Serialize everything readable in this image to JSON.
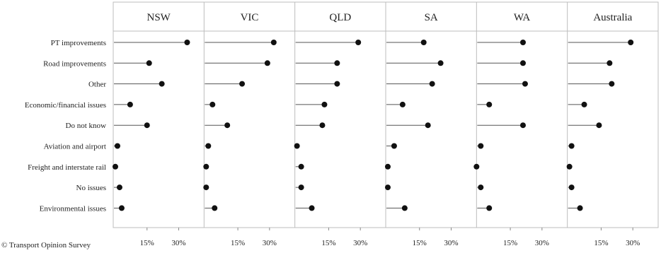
{
  "chart_data": {
    "type": "dot",
    "panels": [
      "NSW",
      "VIC",
      "QLD",
      "SA",
      "WA",
      "Australia"
    ],
    "categories": [
      "PT improvements",
      "Road improvements",
      "Other",
      "Economic/financial issues",
      "Do not know",
      "Aviation and airport",
      "Freight and interstate rail",
      "No issues",
      "Environmental issues"
    ],
    "x_ticks": [
      15,
      30
    ],
    "x_tick_labels": [
      "15%",
      "30%"
    ],
    "xlim": [
      -1,
      42
    ],
    "series": [
      {
        "values": [
          34,
          16,
          22,
          7,
          15,
          1,
          0,
          2,
          3
        ]
      },
      {
        "values": [
          32,
          29,
          17,
          3,
          10,
          1,
          0,
          0,
          4
        ]
      },
      {
        "values": [
          29,
          19,
          19,
          13,
          12,
          0,
          2,
          2,
          7
        ]
      },
      {
        "values": [
          17,
          25,
          21,
          7,
          19,
          3,
          0,
          0,
          8
        ]
      },
      {
        "values": [
          21,
          21,
          22,
          5,
          21,
          1,
          -1,
          1,
          5
        ]
      },
      {
        "values": [
          29,
          19,
          20,
          7,
          14,
          1,
          0,
          1,
          5
        ]
      }
    ]
  },
  "source": "© Transport Opinion Survey"
}
